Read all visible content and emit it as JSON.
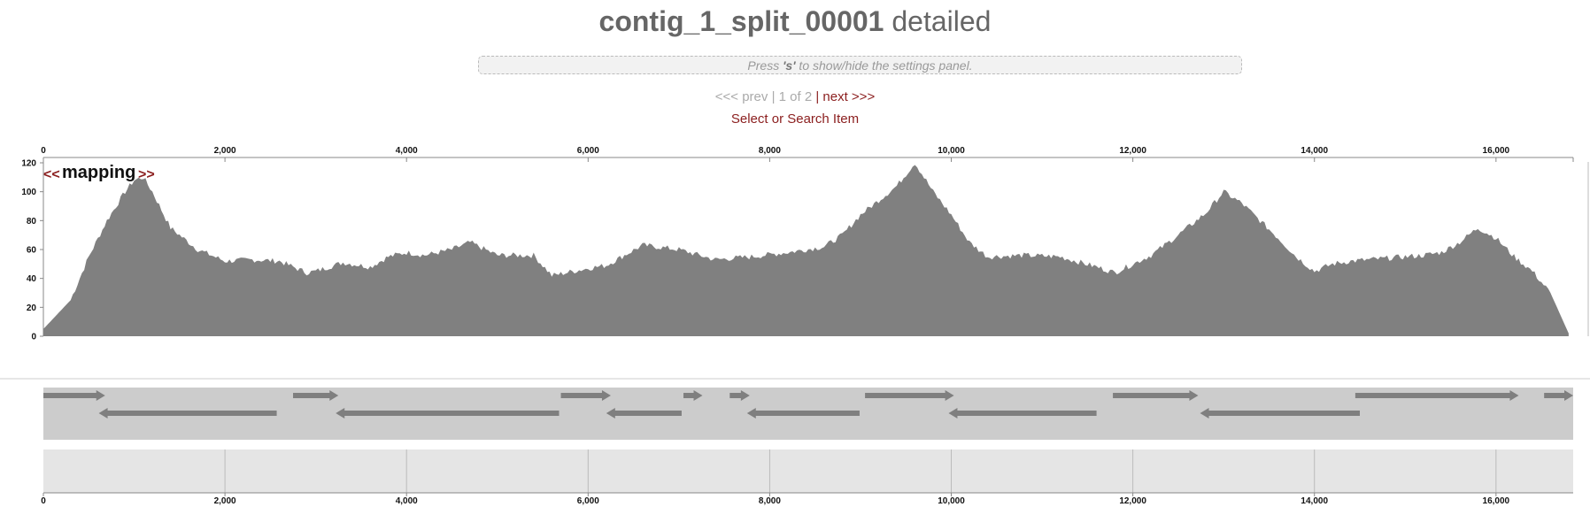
{
  "header": {
    "title_bold": "contig_1_split_00001",
    "title_rest": " detailed"
  },
  "settings": {
    "prefix": "Press ",
    "key": "'s'",
    "suffix": " to show/hide the settings panel."
  },
  "pager": {
    "prev": "<<< prev",
    "sep1": " | ",
    "position": "1 of 2",
    "sep2": " | ",
    "next": "next >>>"
  },
  "search": {
    "label": "Select or Search Item"
  },
  "track": {
    "prev_label": "<<",
    "name": "mapping",
    "next_label": ">>"
  },
  "colors": {
    "coverage_fill": "#808080",
    "gene_track_bg": "#cccccc",
    "gene_arrow": "#7f7f7f",
    "nav_bg": "#e5e5e5",
    "link": "#8b1e1e"
  },
  "chart_data": {
    "type": "area",
    "xlim": [
      0,
      16850
    ],
    "ylim": [
      0,
      120
    ],
    "x_ticks": [
      "0",
      "2,000",
      "4,000",
      "6,000",
      "8,000",
      "10,000",
      "12,000",
      "14,000",
      "16,000"
    ],
    "x_tick_values": [
      0,
      2000,
      4000,
      6000,
      8000,
      10000,
      12000,
      14000,
      16000
    ],
    "y_ticks": [
      "0",
      "20",
      "40",
      "60",
      "80",
      "100",
      "120"
    ],
    "y_tick_values": [
      0,
      20,
      40,
      60,
      80,
      100,
      120
    ],
    "x": [
      0,
      300,
      500,
      700,
      900,
      1000,
      1100,
      1200,
      1400,
      1700,
      2000,
      2300,
      2600,
      2900,
      3000,
      3300,
      3600,
      3800,
      4000,
      4200,
      4500,
      4700,
      4800,
      5000,
      5400,
      5600,
      6000,
      6200,
      6600,
      7000,
      7400,
      7800,
      8200,
      8600,
      8800,
      9000,
      9200,
      9400,
      9600,
      9800,
      10000,
      10200,
      10400,
      10800,
      11200,
      11600,
      11800,
      12200,
      12500,
      12800,
      13000,
      13200,
      13400,
      13600,
      13800,
      14000,
      14200,
      14400,
      14800,
      15200,
      15400,
      15600,
      15800,
      16000,
      16200,
      16400,
      16600,
      16800
    ],
    "y": [
      5,
      25,
      55,
      80,
      100,
      108,
      110,
      100,
      75,
      60,
      52,
      53,
      52,
      44,
      45,
      51,
      48,
      55,
      58,
      56,
      60,
      65,
      62,
      56,
      56,
      42,
      47,
      49,
      63,
      60,
      53,
      55,
      58,
      62,
      70,
      84,
      94,
      104,
      120,
      100,
      84,
      65,
      55,
      56,
      55,
      48,
      44,
      56,
      70,
      85,
      100,
      92,
      80,
      68,
      55,
      45,
      50,
      52,
      54,
      56,
      58,
      65,
      75,
      68,
      55,
      45,
      30,
      2
    ]
  },
  "genes": {
    "forward": [
      [
        0,
        680
      ],
      [
        2750,
        3250
      ],
      [
        5700,
        6250
      ],
      [
        7050,
        7260
      ],
      [
        7560,
        7780
      ],
      [
        9050,
        10030
      ],
      [
        11780,
        12720
      ],
      [
        14450,
        16250
      ],
      [
        16530,
        16850
      ]
    ],
    "reverse": [
      [
        610,
        2570
      ],
      [
        3220,
        5680
      ],
      [
        6200,
        7030
      ],
      [
        7750,
        8990
      ],
      [
        9970,
        11600
      ],
      [
        12740,
        14500
      ]
    ]
  }
}
